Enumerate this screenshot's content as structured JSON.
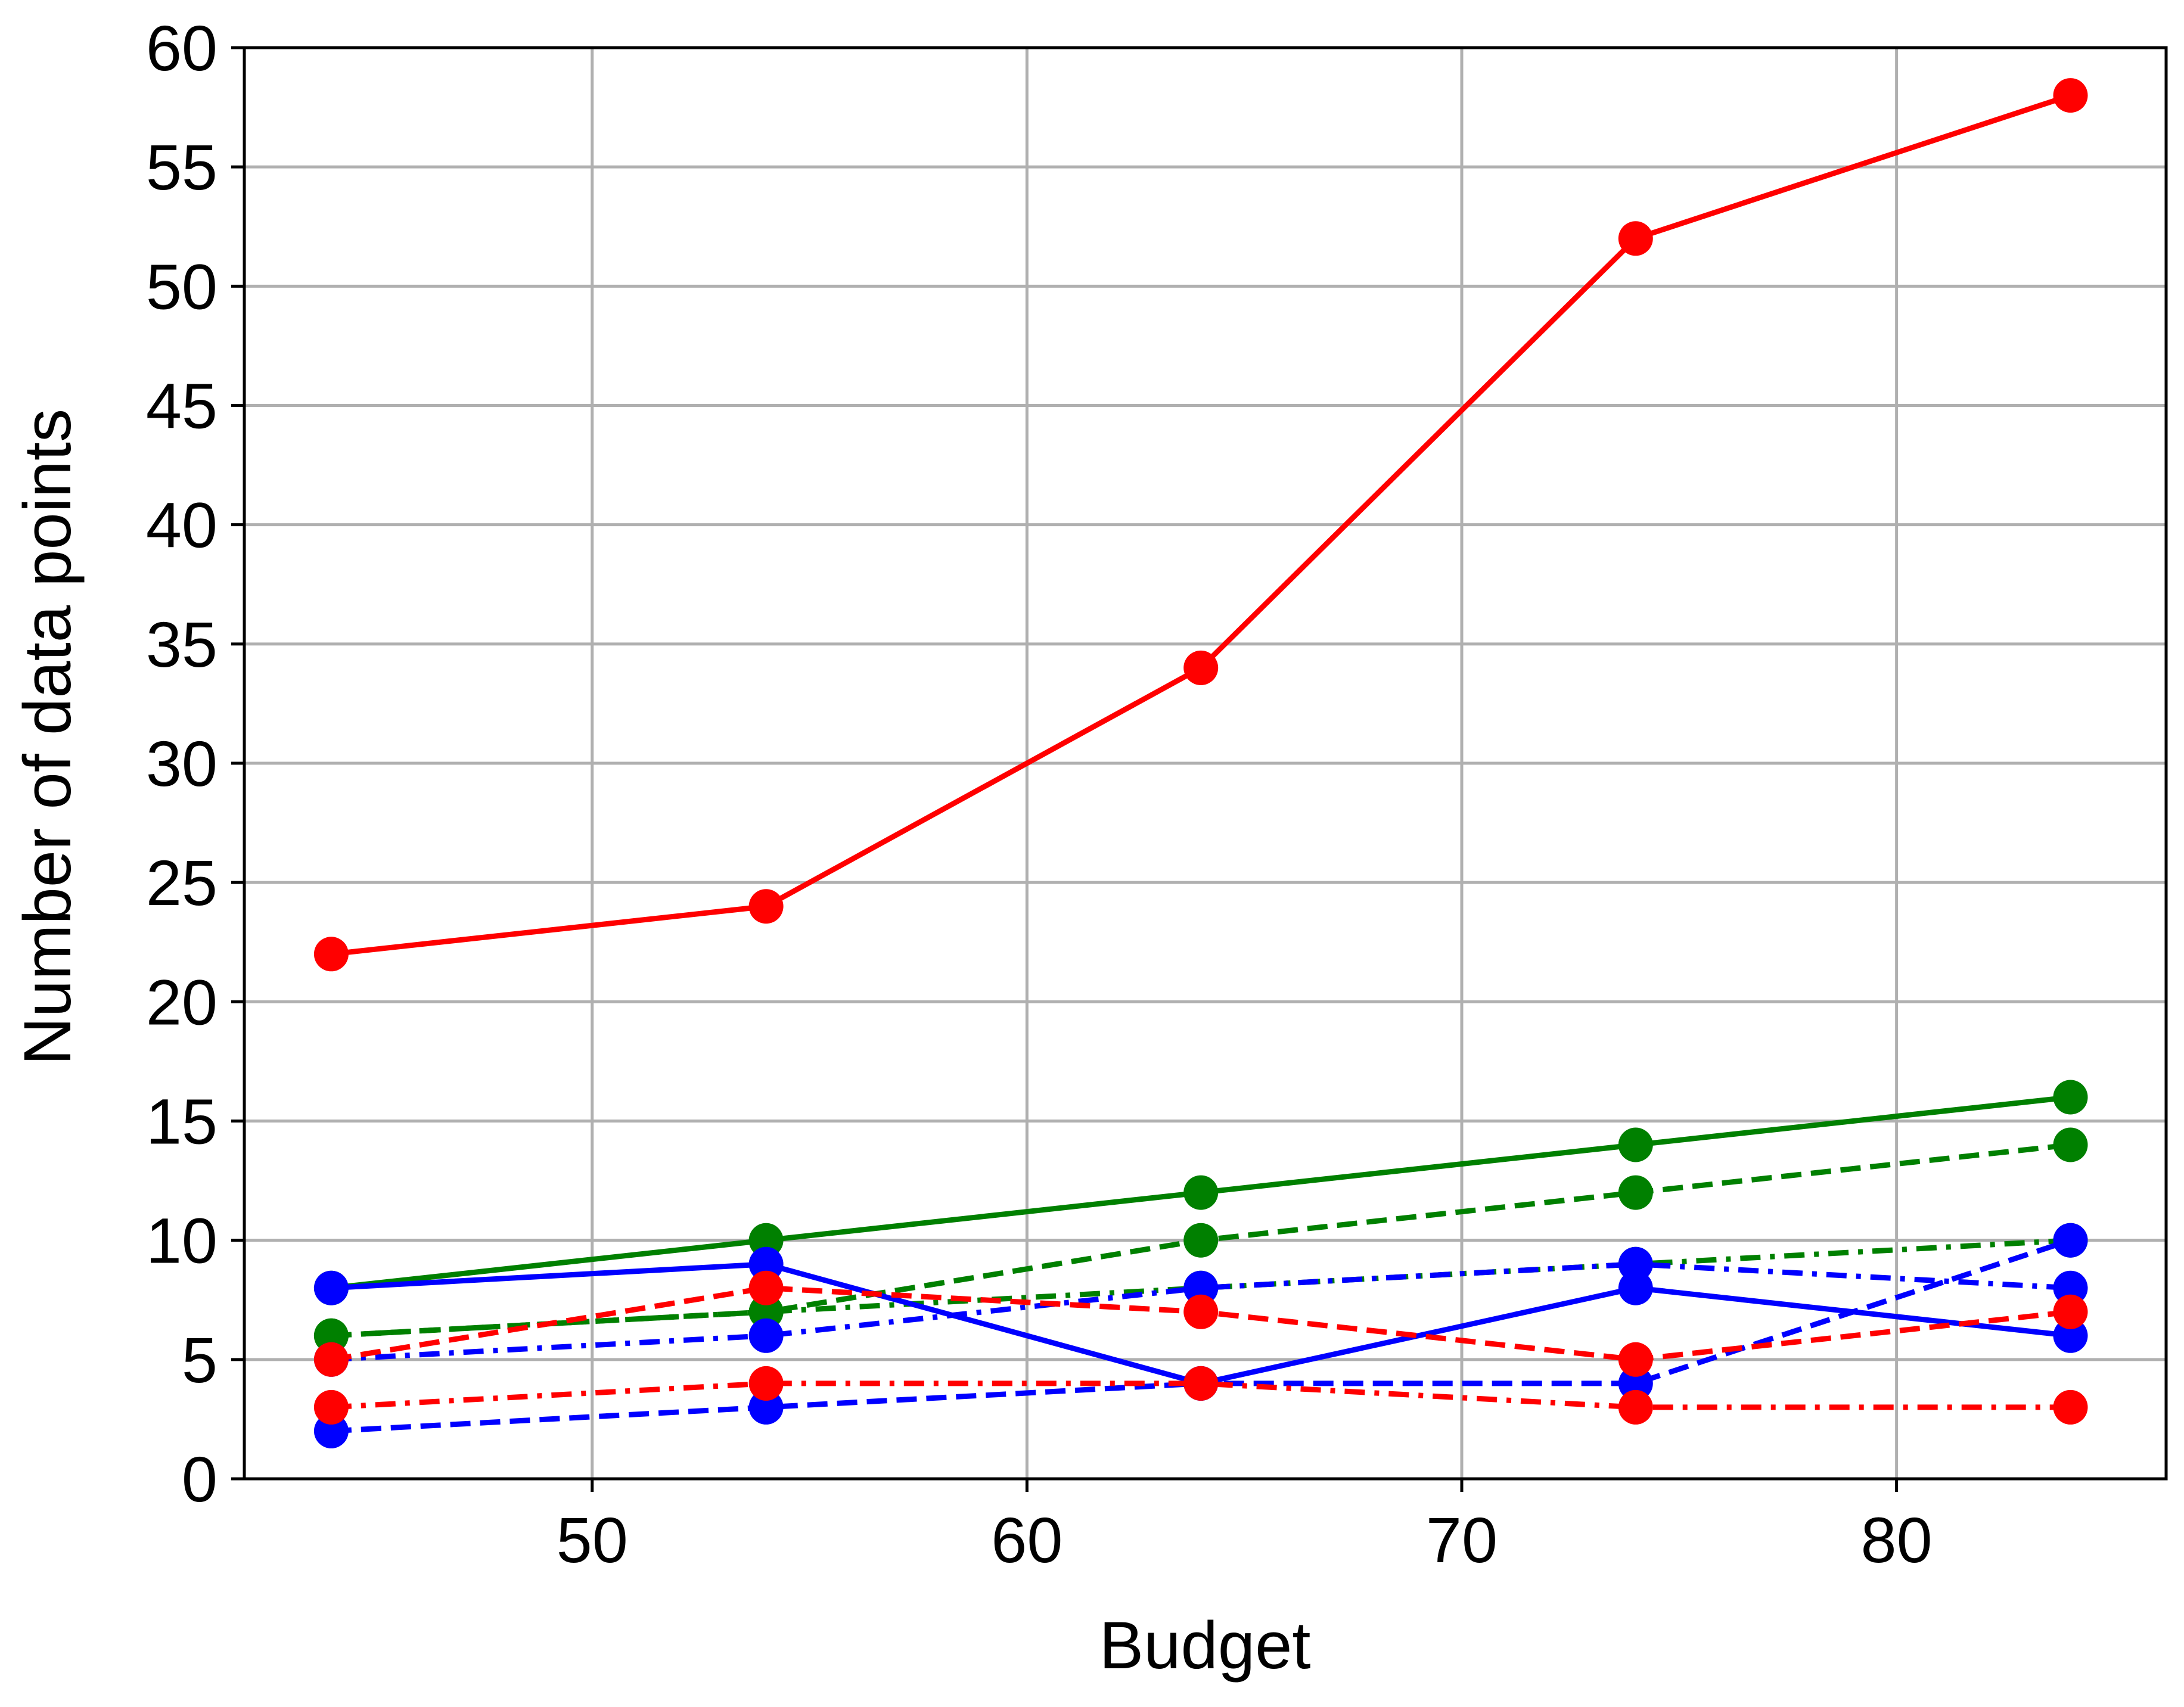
{
  "chart_data": {
    "type": "line",
    "title": "",
    "xlabel": "Budget",
    "ylabel": "Number of data points",
    "xlim": [
      42,
      86.2
    ],
    "ylim": [
      0,
      60
    ],
    "xticks": [
      50,
      60,
      70,
      80
    ],
    "yticks": [
      0,
      5,
      10,
      15,
      20,
      25,
      30,
      35,
      40,
      45,
      50,
      55,
      60
    ],
    "grid": true,
    "x": [
      44,
      54,
      64,
      74,
      84
    ],
    "series": [
      {
        "color": "#ff0000",
        "linestyle": "solid",
        "marker": "circle",
        "values": [
          22,
          24,
          34,
          52,
          58
        ]
      },
      {
        "color": "#008000",
        "linestyle": "solid",
        "marker": "circle",
        "values": [
          8,
          10,
          12,
          14,
          16
        ]
      },
      {
        "color": "#008000",
        "linestyle": "dashed",
        "marker": "circle",
        "values": [
          6,
          7,
          10,
          12,
          14
        ]
      },
      {
        "color": "#008000",
        "linestyle": "dashdot",
        "marker": "circle",
        "values": [
          6,
          7,
          8,
          9,
          10
        ]
      },
      {
        "color": "#0000ff",
        "linestyle": "solid",
        "marker": "circle",
        "values": [
          8,
          9,
          4,
          8,
          6
        ]
      },
      {
        "color": "#0000ff",
        "linestyle": "dashdot",
        "marker": "circle",
        "values": [
          5,
          6,
          8,
          9,
          8
        ]
      },
      {
        "color": "#0000ff",
        "linestyle": "dashed",
        "marker": "circle",
        "values": [
          2,
          3,
          4,
          4,
          10
        ]
      },
      {
        "color": "#ff0000",
        "linestyle": "dashed",
        "marker": "circle",
        "values": [
          5,
          8,
          7,
          5,
          7
        ]
      },
      {
        "color": "#ff0000",
        "linestyle": "dashdot",
        "marker": "circle",
        "values": [
          3,
          4,
          4,
          3,
          3
        ]
      }
    ]
  }
}
